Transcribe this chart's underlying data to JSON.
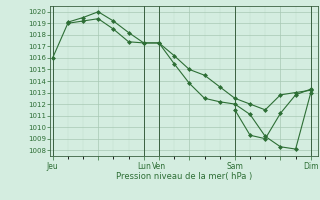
{
  "bg_color": "#d4ede0",
  "grid_color_major": "#a8c8b4",
  "grid_color_minor": "#c0dcc8",
  "line_color": "#2d6e35",
  "marker_color": "#2d6e35",
  "xlabel_text": "Pression niveau de la mer( hPa )",
  "ylim": [
    1007.5,
    1020.5
  ],
  "yticks": [
    1008,
    1009,
    1010,
    1011,
    1012,
    1013,
    1014,
    1015,
    1016,
    1017,
    1018,
    1019,
    1020
  ],
  "xtick_labels": [
    "Jeu",
    "",
    "Lun",
    "Ven",
    "",
    "Sam",
    "",
    "Dim"
  ],
  "xtick_positions": [
    0,
    3,
    6,
    7,
    9,
    12,
    15,
    17
  ],
  "vline_positions": [
    0,
    6,
    7,
    12,
    17
  ],
  "xlim": [
    -0.2,
    17.5
  ],
  "series1_x": [
    0,
    1,
    2,
    3,
    4,
    5,
    6,
    7,
    8,
    9,
    10,
    11,
    12,
    13,
    14,
    15,
    16,
    17
  ],
  "series1_y": [
    1016.0,
    1019.0,
    1019.2,
    1019.4,
    1018.5,
    1017.4,
    1017.3,
    1017.3,
    1016.2,
    1015.0,
    1014.5,
    1013.5,
    1012.5,
    1012.0,
    1011.5,
    1012.8,
    1013.0,
    1013.2
  ],
  "series2_x": [
    1,
    2,
    3,
    4,
    5,
    6,
    7,
    8,
    9,
    10,
    11,
    12,
    13,
    14,
    15,
    16,
    17
  ],
  "series2_y": [
    1019.1,
    1019.5,
    1020.0,
    1019.2,
    1018.2,
    1017.3,
    1017.3,
    1015.5,
    1013.8,
    1012.5,
    1012.2,
    1012.0,
    1011.1,
    1009.2,
    1008.3,
    1008.1,
    1013.0
  ],
  "series3_x": [
    12,
    13,
    14,
    15,
    16,
    17
  ],
  "series3_y": [
    1011.5,
    1009.3,
    1009.0,
    1011.2,
    1012.8,
    1013.3
  ]
}
